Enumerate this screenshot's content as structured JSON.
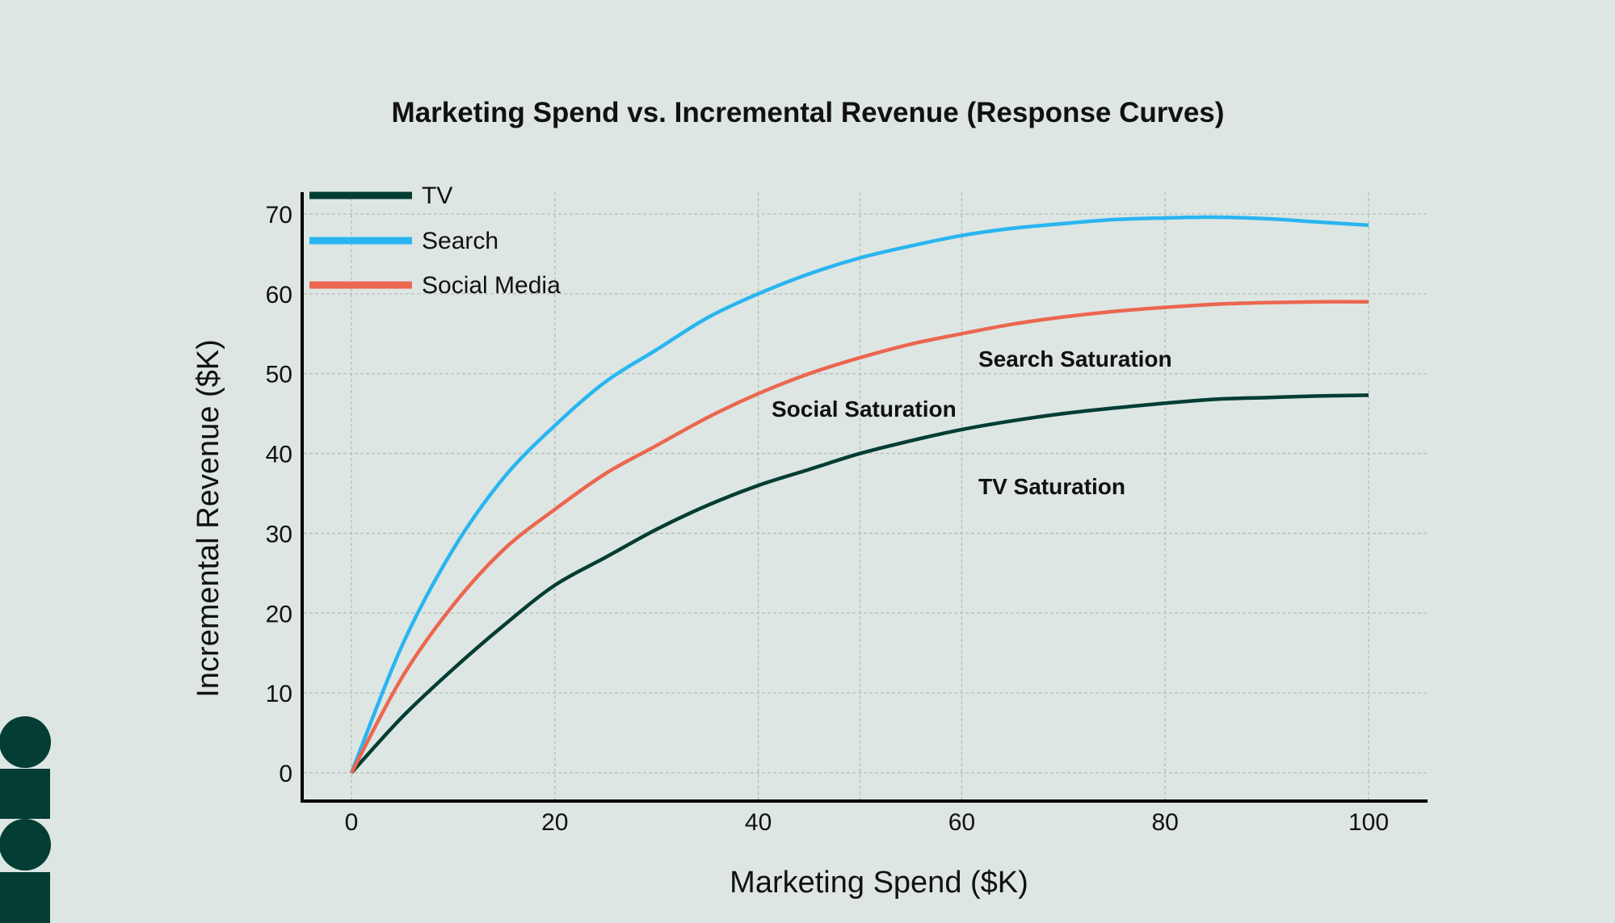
{
  "chart_data": {
    "type": "line",
    "title": "Marketing Spend vs. Incremental Revenue (Response Curves)",
    "xlabel": "Marketing Spend ($K)",
    "ylabel": "Incremental Revenue ($K)",
    "xlim": [
      -5,
      105
    ],
    "ylim": [
      -3.5,
      72
    ],
    "xticks": [
      0,
      20,
      40,
      60,
      80,
      100
    ],
    "yticks": [
      0,
      10,
      20,
      30,
      40,
      50,
      60,
      70
    ],
    "grid": true,
    "legend_position": "top-left",
    "x": [
      0,
      5,
      10,
      15,
      20,
      25,
      30,
      35,
      40,
      45,
      50,
      55,
      60,
      65,
      70,
      75,
      80,
      85,
      90,
      95,
      100
    ],
    "series": [
      {
        "name": "TV",
        "color": "#033d33",
        "values": [
          0,
          7,
          13,
          18.5,
          23.5,
          27,
          30.5,
          33.5,
          36,
          38,
          40,
          41.6,
          43,
          44.1,
          45,
          45.7,
          46.3,
          46.8,
          47,
          47.2,
          47.3
        ]
      },
      {
        "name": "Search",
        "color": "#29b5f0",
        "values": [
          0,
          16,
          28,
          37,
          43.5,
          49,
          53,
          57,
          60,
          62.5,
          64.5,
          66,
          67.3,
          68.2,
          68.8,
          69.3,
          69.5,
          69.6,
          69.4,
          69,
          68.6
        ]
      },
      {
        "name": "Social Media",
        "color": "#ec6650",
        "values": [
          0,
          12,
          21,
          28,
          33,
          37.5,
          41,
          44.5,
          47.5,
          50,
          52,
          53.7,
          55,
          56.2,
          57.1,
          57.8,
          58.3,
          58.7,
          58.9,
          59,
          59
        ]
      }
    ],
    "annotations": [
      {
        "text": "Search Saturation",
        "x": 61,
        "y": 51.5
      },
      {
        "text": "Social Saturation",
        "x": 40.8,
        "y": 45.2
      },
      {
        "text": "TV Saturation",
        "x": 61,
        "y": 35.6
      }
    ]
  },
  "colors": {
    "background": "#dde6e3",
    "logo": "#033d33"
  }
}
